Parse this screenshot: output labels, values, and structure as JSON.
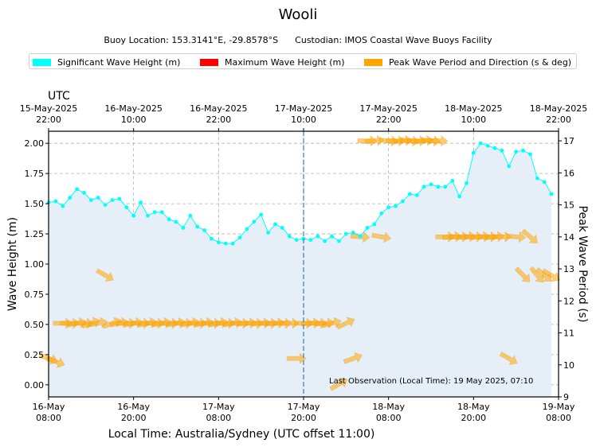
{
  "chart_data": {
    "type": "line",
    "title": "Wooli",
    "subtitle_location": "Buoy Location: 153.3141°E, -29.8578°S",
    "subtitle_custodian": "Custodian: IMOS Coastal Wave Buoys Facility",
    "xlabel": "Local Time: Australia/Sydney (UTC offset 11:00)",
    "ylabel": "Wave Height (m)",
    "y2label": "Peak Wave Period (s)",
    "top_axis_label": "UTC",
    "annotation": "Last Observation (Local Time): 19 May 2025, 07:10",
    "xlim_hours": [
      0,
      72
    ],
    "ylim": [
      -0.1,
      2.1
    ],
    "y2lim": [
      9,
      17.3
    ],
    "yticks": [
      "0.00",
      "0.25",
      "0.50",
      "0.75",
      "1.00",
      "1.25",
      "1.50",
      "1.75",
      "2.00"
    ],
    "y2ticks": [
      "9",
      "10",
      "11",
      "12",
      "13",
      "14",
      "15",
      "16",
      "17"
    ],
    "bottom_ticks": [
      {
        "h": 0,
        "date": "16-May",
        "time": "08:00"
      },
      {
        "h": 12,
        "date": "16-May",
        "time": "20:00"
      },
      {
        "h": 24,
        "date": "17-May",
        "time": "08:00"
      },
      {
        "h": 36,
        "date": "17-May",
        "time": "20:00"
      },
      {
        "h": 48,
        "date": "18-May",
        "time": "08:00"
      },
      {
        "h": 60,
        "date": "18-May",
        "time": "20:00"
      },
      {
        "h": 72,
        "date": "19-May",
        "time": "08:00"
      }
    ],
    "top_ticks": [
      {
        "h": 0,
        "date": "15-May-2025",
        "time": "22:00"
      },
      {
        "h": 12,
        "date": "16-May-2025",
        "time": "10:00"
      },
      {
        "h": 24,
        "date": "16-May-2025",
        "time": "22:00"
      },
      {
        "h": 36,
        "date": "17-May-2025",
        "time": "10:00"
      },
      {
        "h": 48,
        "date": "17-May-2025",
        "time": "22:00"
      },
      {
        "h": 60,
        "date": "18-May-2025",
        "time": "10:00"
      },
      {
        "h": 72,
        "date": "18-May-2025",
        "time": "22:00"
      }
    ],
    "legend": [
      {
        "name": "Significant Wave Height (m)",
        "color": "#00ffff"
      },
      {
        "name": "Maximum Wave Height (m)",
        "color": "#ff0000"
      },
      {
        "name": "Peak Wave Period and Direction (s & deg)",
        "color": "#ffa500"
      }
    ],
    "vline_hour": 36,
    "series": [
      {
        "name": "Significant Wave Height (m)",
        "color": "#00ffff",
        "x": [
          0,
          1,
          2,
          3,
          4,
          5,
          6,
          7,
          8,
          9,
          10,
          11,
          12,
          13,
          14,
          15,
          16,
          17,
          18,
          19,
          20,
          21,
          22,
          23,
          24,
          25,
          26,
          27,
          28,
          29,
          30,
          31,
          32,
          33,
          34,
          35,
          36,
          37,
          38,
          39,
          40,
          41,
          42,
          43,
          44,
          45,
          46,
          47,
          48,
          49,
          50,
          51,
          52,
          53,
          54,
          55,
          56,
          57,
          58,
          59,
          60,
          61,
          62,
          63,
          64,
          65,
          66,
          67,
          68,
          69,
          70,
          71
        ],
        "values": [
          1.51,
          1.52,
          1.48,
          1.55,
          1.62,
          1.59,
          1.53,
          1.55,
          1.49,
          1.53,
          1.54,
          1.47,
          1.4,
          1.51,
          1.4,
          1.43,
          1.43,
          1.37,
          1.35,
          1.3,
          1.4,
          1.31,
          1.28,
          1.21,
          1.18,
          1.17,
          1.17,
          1.22,
          1.29,
          1.35,
          1.41,
          1.26,
          1.33,
          1.3,
          1.23,
          1.2,
          1.21,
          1.2,
          1.23,
          1.19,
          1.23,
          1.19,
          1.25,
          1.26,
          1.23,
          1.3,
          1.33,
          1.42,
          1.47,
          1.48,
          1.52,
          1.58,
          1.57,
          1.64,
          1.66,
          1.64,
          1.64,
          1.69,
          1.56,
          1.67,
          1.92,
          2.0,
          1.98,
          1.96,
          1.94,
          1.81,
          1.93,
          1.94,
          1.91,
          1.71,
          1.68,
          1.58
        ]
      },
      {
        "name": "Peak Wave Period and Direction (s & deg)",
        "color": "#ffa500",
        "points": [
          {
            "h": 0,
            "period": 10.2,
            "dir": 290
          },
          {
            "h": 1,
            "period": 10.1,
            "dir": 290
          },
          {
            "h": 2,
            "period": 11.3,
            "dir": 270
          },
          {
            "h": 3,
            "period": 11.3,
            "dir": 270
          },
          {
            "h": 4,
            "period": 11.3,
            "dir": 260
          },
          {
            "h": 5,
            "period": 11.3,
            "dir": 270
          },
          {
            "h": 6,
            "period": 11.3,
            "dir": 250
          },
          {
            "h": 7,
            "period": 11.3,
            "dir": 260
          },
          {
            "h": 8,
            "period": 12.8,
            "dir": 300
          },
          {
            "h": 9,
            "period": 11.3,
            "dir": 250
          },
          {
            "h": 10,
            "period": 11.3,
            "dir": 260
          },
          {
            "h": 11,
            "period": 11.3,
            "dir": 270
          },
          {
            "h": 12,
            "period": 11.3,
            "dir": 260
          },
          {
            "h": 13,
            "period": 11.3,
            "dir": 270
          },
          {
            "h": 14,
            "period": 11.3,
            "dir": 260
          },
          {
            "h": 15,
            "period": 11.3,
            "dir": 270
          },
          {
            "h": 16,
            "period": 11.3,
            "dir": 260
          },
          {
            "h": 17,
            "period": 11.3,
            "dir": 270
          },
          {
            "h": 18,
            "period": 11.3,
            "dir": 260
          },
          {
            "h": 19,
            "period": 11.3,
            "dir": 270
          },
          {
            "h": 20,
            "period": 11.3,
            "dir": 260
          },
          {
            "h": 21,
            "period": 11.3,
            "dir": 270
          },
          {
            "h": 22,
            "period": 11.3,
            "dir": 260
          },
          {
            "h": 23,
            "period": 11.3,
            "dir": 270
          },
          {
            "h": 24,
            "period": 11.3,
            "dir": 260
          },
          {
            "h": 25,
            "period": 11.3,
            "dir": 270
          },
          {
            "h": 26,
            "period": 11.3,
            "dir": 260
          },
          {
            "h": 27,
            "period": 11.3,
            "dir": 270
          },
          {
            "h": 28,
            "period": 11.3,
            "dir": 265
          },
          {
            "h": 29,
            "period": 11.3,
            "dir": 270
          },
          {
            "h": 30,
            "period": 11.3,
            "dir": 265
          },
          {
            "h": 31,
            "period": 11.3,
            "dir": 270
          },
          {
            "h": 32,
            "period": 11.3,
            "dir": 265
          },
          {
            "h": 33,
            "period": 11.3,
            "dir": 270
          },
          {
            "h": 34,
            "period": 11.3,
            "dir": 270
          },
          {
            "h": 35,
            "period": 10.2,
            "dir": 270
          },
          {
            "h": 36,
            "period": 11.3,
            "dir": 270
          },
          {
            "h": 37,
            "period": 11.3,
            "dir": 265
          },
          {
            "h": 38,
            "period": 11.3,
            "dir": 270
          },
          {
            "h": 39,
            "period": 11.3,
            "dir": 265
          },
          {
            "h": 40,
            "period": 11.3,
            "dir": 255
          },
          {
            "h": 41,
            "period": 9.4,
            "dir": 240
          },
          {
            "h": 42,
            "period": 11.3,
            "dir": 245
          },
          {
            "h": 43,
            "period": 10.2,
            "dir": 250
          },
          {
            "h": 44,
            "period": 14.0,
            "dir": 275
          },
          {
            "h": 45,
            "period": 17.0,
            "dir": 270
          },
          {
            "h": 46,
            "period": 17.0,
            "dir": 265
          },
          {
            "h": 47,
            "period": 14.0,
            "dir": 280
          },
          {
            "h": 48,
            "period": 17.0,
            "dir": 275
          },
          {
            "h": 49,
            "period": 17.0,
            "dir": 270
          },
          {
            "h": 50,
            "period": 17.0,
            "dir": 265
          },
          {
            "h": 51,
            "period": 17.0,
            "dir": 275
          },
          {
            "h": 52,
            "period": 17.0,
            "dir": 270
          },
          {
            "h": 53,
            "period": 17.0,
            "dir": 265
          },
          {
            "h": 54,
            "period": 17.0,
            "dir": 275
          },
          {
            "h": 55,
            "period": 17.0,
            "dir": 270
          },
          {
            "h": 56,
            "period": 14.0,
            "dir": 270
          },
          {
            "h": 57,
            "period": 14.0,
            "dir": 265
          },
          {
            "h": 58,
            "period": 14.0,
            "dir": 270
          },
          {
            "h": 59,
            "period": 14.0,
            "dir": 265
          },
          {
            "h": 60,
            "period": 14.0,
            "dir": 270
          },
          {
            "h": 61,
            "period": 14.0,
            "dir": 265
          },
          {
            "h": 62,
            "period": 14.0,
            "dir": 270
          },
          {
            "h": 63,
            "period": 14.0,
            "dir": 265
          },
          {
            "h": 64,
            "period": 14.0,
            "dir": 270
          },
          {
            "h": 65,
            "period": 10.2,
            "dir": 300
          },
          {
            "h": 66,
            "period": 14.0,
            "dir": 275
          },
          {
            "h": 67,
            "period": 12.8,
            "dir": 315
          },
          {
            "h": 68,
            "period": 14.0,
            "dir": 310
          },
          {
            "h": 69,
            "period": 12.8,
            "dir": 320
          },
          {
            "h": 70,
            "period": 12.8,
            "dir": 310
          },
          {
            "h": 71,
            "period": 12.8,
            "dir": 300
          }
        ]
      }
    ]
  }
}
